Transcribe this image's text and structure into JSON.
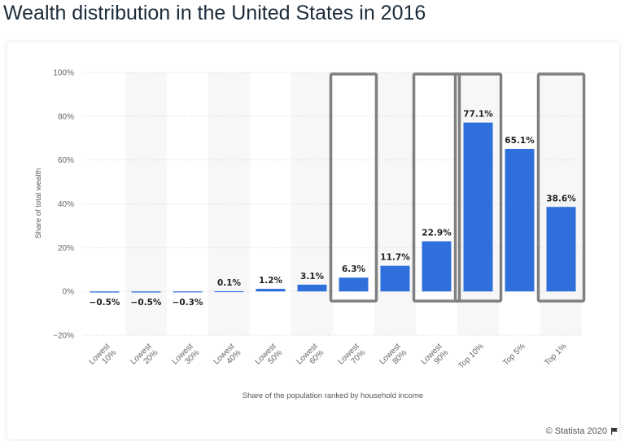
{
  "page": {
    "title": "Wealth distribution in the United States in 2016",
    "credit": "© Statista 2020"
  },
  "chart_data": {
    "type": "bar",
    "title": "",
    "xlabel": "Share of the population ranked by household income",
    "ylabel": "Share of total wealth",
    "categories": [
      "Lowest 10%",
      "Lowest 20%",
      "Lowest 30%",
      "Lowest 40%",
      "Lowest 50%",
      "Lowest 60%",
      "Lowest 70%",
      "Lowest 80%",
      "Lowest 90%",
      "Top 10%",
      "Top 5%",
      "Top 1%"
    ],
    "values": [
      -0.5,
      -0.5,
      -0.3,
      0.1,
      1.2,
      3.1,
      6.3,
      11.7,
      22.9,
      77.1,
      65.1,
      38.6
    ],
    "value_labels": [
      "−0.5%",
      "−0.5%",
      "−0.3%",
      "0.1%",
      "1.2%",
      "3.1%",
      "6.3%",
      "11.7%",
      "22.9%",
      "77.1%",
      "65.1%",
      "38.6%"
    ],
    "y_ticks": [
      "100%",
      "80%",
      "60%",
      "40%",
      "20%",
      "0%",
      "−20%"
    ],
    "y_tick_values": [
      100,
      80,
      60,
      40,
      20,
      0,
      -20
    ],
    "ylim": [
      -20,
      100
    ],
    "grid": true,
    "bar_color": "#2f6fdc",
    "highlighted_categories": [
      "Lowest 70%",
      "Lowest 90%",
      "Top 10%",
      "Top 1%"
    ],
    "highlight_color": "#808080"
  }
}
